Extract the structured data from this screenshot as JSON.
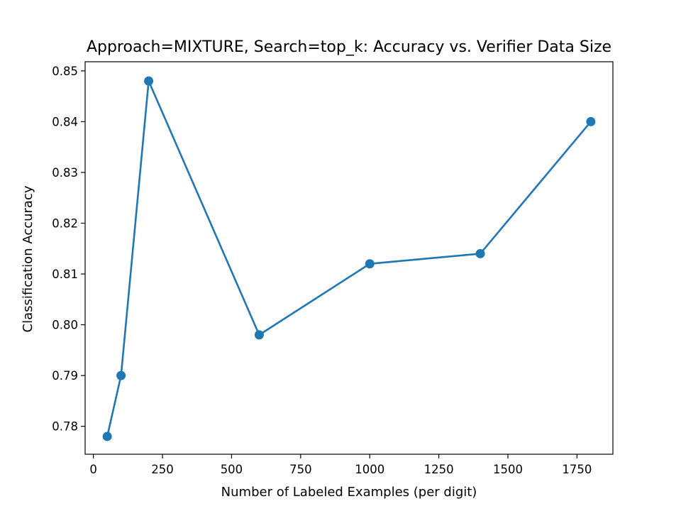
{
  "chart_data": {
    "type": "line",
    "title": "Approach=MIXTURE, Search=top_k: Accuracy vs. Verifier Data Size",
    "xlabel": "Number of Labeled Examples (per digit)",
    "ylabel": "Classification Accuracy",
    "xlim": [
      -30,
      1880
    ],
    "ylim": [
      0.7745,
      0.8518
    ],
    "xticks": [
      0,
      250,
      500,
      750,
      1000,
      1250,
      1500,
      1750
    ],
    "xtick_labels": [
      "0",
      "250",
      "500",
      "750",
      "1000",
      "1250",
      "1500",
      "1750"
    ],
    "yticks": [
      0.78,
      0.79,
      0.8,
      0.81,
      0.82,
      0.83,
      0.84,
      0.85
    ],
    "ytick_labels": [
      "0.78",
      "0.79",
      "0.80",
      "0.81",
      "0.82",
      "0.83",
      "0.84",
      "0.85"
    ],
    "grid": false,
    "series": [
      {
        "color": "#1f77b4",
        "marker": "circle",
        "x": [
          50,
          100,
          200,
          600,
          1000,
          1400,
          1800
        ],
        "y": [
          0.778,
          0.79,
          0.848,
          0.798,
          0.812,
          0.814,
          0.84
        ]
      }
    ]
  }
}
